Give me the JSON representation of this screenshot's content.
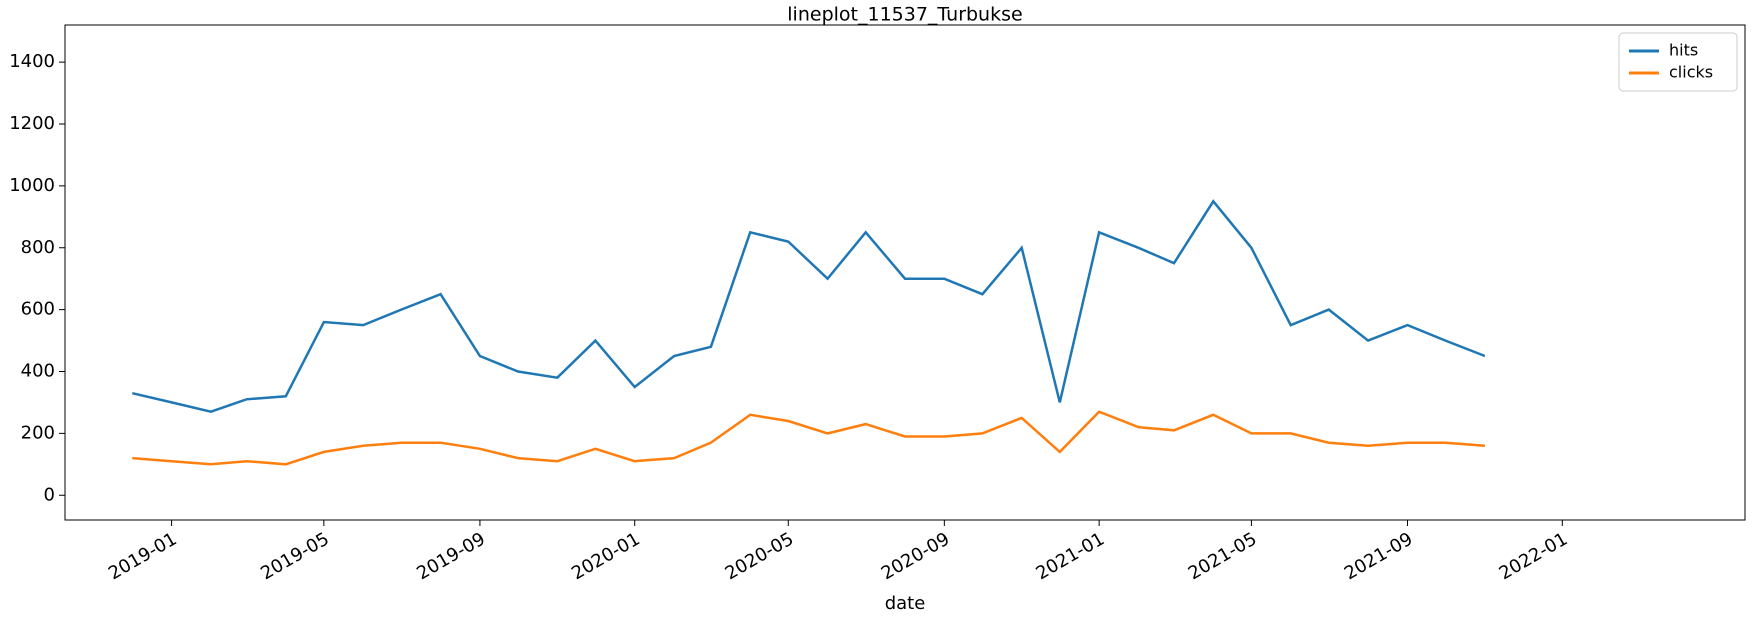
{
  "chart_data": {
    "type": "line",
    "title": "lineplot_11537_Turbukse",
    "xlabel": "date",
    "x": [
      "2018-12",
      "2019-01",
      "2019-02",
      "2019-03",
      "2019-04",
      "2019-05",
      "2019-06",
      "2019-07",
      "2019-08",
      "2019-09",
      "2019-10",
      "2019-11",
      "2019-12",
      "2020-01",
      "2020-02",
      "2020-03",
      "2020-04",
      "2020-05",
      "2020-06",
      "2020-07",
      "2020-08",
      "2020-09",
      "2020-10",
      "2020-11",
      "2020-12",
      "2021-01",
      "2021-02",
      "2021-03",
      "2021-04",
      "2021-05",
      "2021-06",
      "2021-07",
      "2021-08",
      "2021-09",
      "2021-10",
      "2021-11"
    ],
    "series": [
      {
        "name": "hits",
        "color": "#1f77b4",
        "values": [
          330,
          300,
          270,
          310,
          320,
          560,
          550,
          600,
          650,
          450,
          400,
          380,
          500,
          350,
          450,
          480,
          850,
          820,
          700,
          850,
          700,
          700,
          650,
          800,
          300,
          850,
          800,
          750,
          950,
          800,
          550,
          600,
          500,
          550,
          500,
          450
        ]
      },
      {
        "name": "clicks",
        "color": "#ff7f0e",
        "values": [
          120,
          110,
          100,
          110,
          100,
          140,
          160,
          170,
          170,
          150,
          120,
          110,
          150,
          110,
          120,
          170,
          260,
          240,
          200,
          230,
          190,
          190,
          200,
          250,
          140,
          270,
          220,
          210,
          260,
          200,
          200,
          170,
          160,
          170,
          170,
          160
        ]
      }
    ],
    "xlim": [
      "2018-10-09",
      "2022-05-25"
    ],
    "xticks": [
      "2019-01",
      "2019-05",
      "2019-09",
      "2020-01",
      "2020-05",
      "2020-09",
      "2021-01",
      "2021-05",
      "2021-09",
      "2022-01"
    ],
    "ylim": [
      -80,
      1520
    ],
    "yticks": [
      0,
      200,
      400,
      600,
      800,
      1000,
      1200,
      1400
    ],
    "legend": "upper right"
  }
}
